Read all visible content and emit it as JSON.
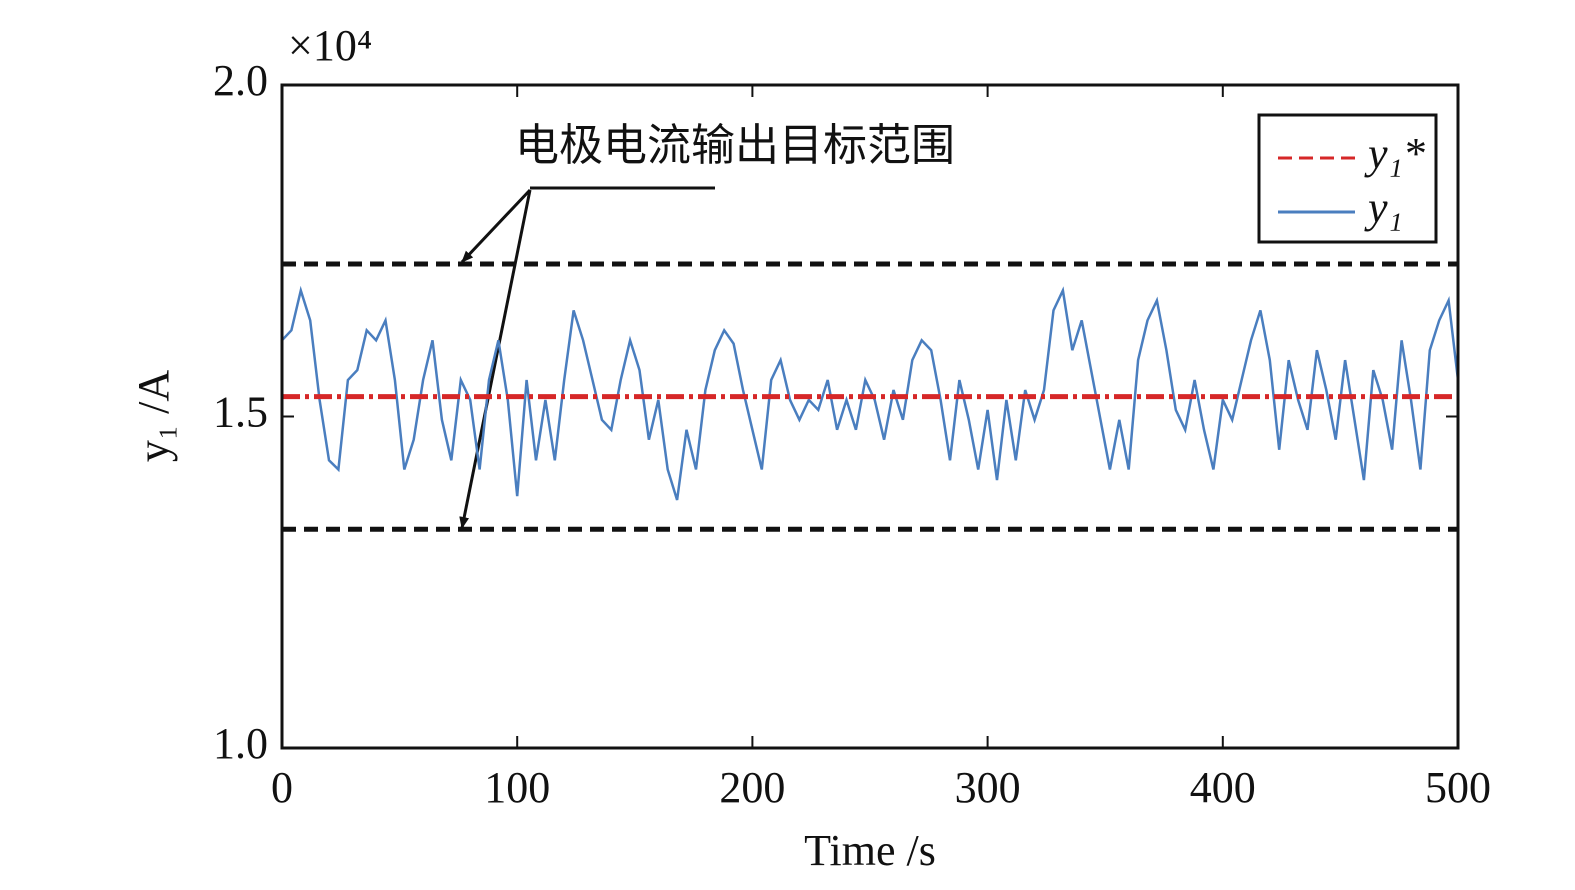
{
  "chart_data": {
    "type": "line",
    "xlabel": "Time /s",
    "ylabel": "y₁ /A",
    "y_multiplier": "×10⁴",
    "annotation": "电极电流输出目标范围",
    "target_range": {
      "upper": 1.73,
      "lower": 1.33,
      "color": "#111111"
    },
    "xlim": [
      0,
      500
    ],
    "xticks": [
      0,
      100,
      200,
      300,
      400,
      500
    ],
    "ylim": [
      1.0,
      2.0
    ],
    "yticks": [
      {
        "value": 1.0,
        "label": "1.0"
      },
      {
        "value": 1.5,
        "label": "1.5"
      },
      {
        "value": 2.0,
        "label": "2.0"
      }
    ],
    "legend": "upper right",
    "series": [
      {
        "name": "y₁*",
        "color": "#d62728",
        "dashed": true,
        "x": [
          0,
          500
        ],
        "values": [
          1.53,
          1.53
        ]
      },
      {
        "name": "y₁",
        "color": "#4a7ebf",
        "dashed": false,
        "x": [
          0,
          4,
          8,
          12,
          16,
          20,
          24,
          28,
          32,
          36,
          40,
          44,
          48,
          52,
          56,
          60,
          64,
          68,
          72,
          76,
          80,
          84,
          88,
          92,
          96,
          100,
          104,
          108,
          112,
          116,
          120,
          124,
          128,
          132,
          136,
          140,
          144,
          148,
          152,
          156,
          160,
          164,
          168,
          172,
          176,
          180,
          184,
          188,
          192,
          196,
          200,
          204,
          208,
          212,
          216,
          220,
          224,
          228,
          232,
          236,
          240,
          244,
          248,
          252,
          256,
          260,
          264,
          268,
          272,
          276,
          280,
          284,
          288,
          292,
          296,
          300,
          304,
          308,
          312,
          316,
          320,
          324,
          328,
          332,
          336,
          340,
          344,
          348,
          352,
          356,
          360,
          364,
          368,
          372,
          376,
          380,
          384,
          388,
          392,
          396,
          400,
          404,
          408,
          412,
          416,
          420,
          424,
          428,
          432,
          436,
          440,
          444,
          448,
          452,
          456,
          460,
          464,
          468,
          472,
          476,
          480,
          484,
          488,
          492,
          496,
          500
        ],
        "values": [
          1.615,
          1.63,
          1.69,
          1.645,
          1.525,
          1.434,
          1.42,
          1.555,
          1.57,
          1.63,
          1.615,
          1.645,
          1.555,
          1.42,
          1.465,
          1.555,
          1.615,
          1.495,
          1.434,
          1.555,
          1.525,
          1.42,
          1.555,
          1.615,
          1.525,
          1.38,
          1.555,
          1.434,
          1.525,
          1.434,
          1.555,
          1.66,
          1.615,
          1.555,
          1.495,
          1.48,
          1.555,
          1.615,
          1.57,
          1.465,
          1.525,
          1.42,
          1.374,
          1.48,
          1.42,
          1.54,
          1.6,
          1.63,
          1.61,
          1.54,
          1.48,
          1.42,
          1.555,
          1.585,
          1.525,
          1.495,
          1.525,
          1.51,
          1.555,
          1.48,
          1.525,
          1.48,
          1.555,
          1.525,
          1.465,
          1.54,
          1.495,
          1.585,
          1.615,
          1.6,
          1.525,
          1.434,
          1.555,
          1.495,
          1.42,
          1.51,
          1.404,
          1.525,
          1.434,
          1.54,
          1.495,
          1.54,
          1.66,
          1.69,
          1.6,
          1.645,
          1.57,
          1.495,
          1.42,
          1.495,
          1.42,
          1.585,
          1.645,
          1.675,
          1.6,
          1.51,
          1.48,
          1.555,
          1.48,
          1.42,
          1.525,
          1.495,
          1.555,
          1.615,
          1.66,
          1.585,
          1.45,
          1.585,
          1.525,
          1.48,
          1.6,
          1.54,
          1.465,
          1.585,
          1.495,
          1.404,
          1.57,
          1.525,
          1.45,
          1.615,
          1.525,
          1.42,
          1.6,
          1.645,
          1.675,
          1.555
        ]
      }
    ]
  }
}
